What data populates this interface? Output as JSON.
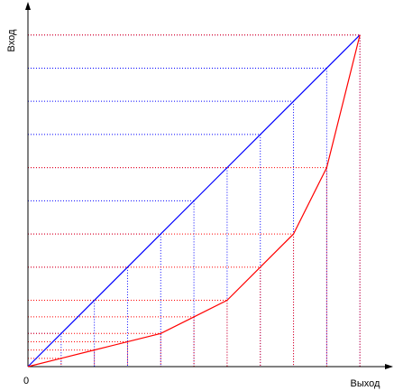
{
  "chart_data": {
    "type": "line",
    "y_label": "Вход",
    "x_label": "Выход",
    "origin_label": "0",
    "x": [
      0,
      1,
      2,
      3,
      4,
      5,
      6,
      7,
      8,
      9,
      10
    ],
    "series": [
      {
        "color": "#0000ff",
        "values": [
          0,
          1,
          2,
          3,
          4,
          5,
          6,
          7,
          8,
          9,
          10
        ]
      },
      {
        "color": "#ff0000",
        "values": [
          0,
          0.25,
          0.5,
          0.75,
          1,
          1.5,
          2,
          3,
          4,
          6,
          10
        ]
      }
    ],
    "xlim": [
      0,
      11
    ],
    "ylim": [
      0,
      11
    ],
    "guides": true
  }
}
